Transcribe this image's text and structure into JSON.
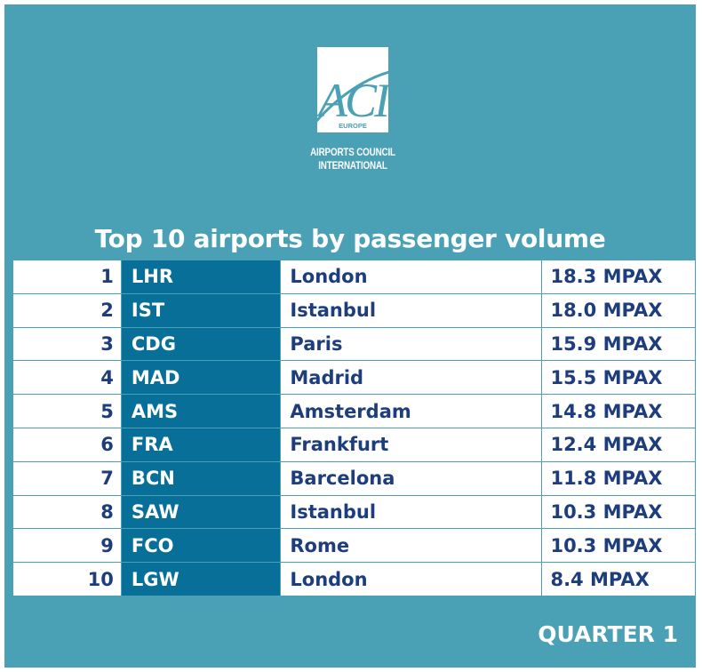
{
  "logo": {
    "mark": "ACI",
    "region": "EUROPE",
    "org_line1": "AIRPORTS COUNCIL",
    "org_line2": "INTERNATIONAL"
  },
  "title": "Top 10 airports by passenger volume",
  "rows": [
    {
      "rank": "1",
      "code": "LHR",
      "city": "London",
      "volume": "18.3 MPAX"
    },
    {
      "rank": "2",
      "code": "IST",
      "city": "Istanbul",
      "volume": "18.0 MPAX"
    },
    {
      "rank": "3",
      "code": "CDG",
      "city": "Paris",
      "volume": "15.9 MPAX"
    },
    {
      "rank": "4",
      "code": "MAD",
      "city": "Madrid",
      "volume": "15.5 MPAX"
    },
    {
      "rank": "5",
      "code": "AMS",
      "city": "Amsterdam",
      "volume": "14.8 MPAX"
    },
    {
      "rank": "6",
      "code": "FRA",
      "city": "Frankfurt",
      "volume": "12.4 MPAX"
    },
    {
      "rank": "7",
      "code": "BCN",
      "city": "Barcelona",
      "volume": "11.8 MPAX"
    },
    {
      "rank": "8",
      "code": "SAW",
      "city": "Istanbul",
      "volume": "10.3 MPAX"
    },
    {
      "rank": "9",
      "code": "FCO",
      "city": "Rome",
      "volume": "10.3 MPAX"
    },
    {
      "rank": "10",
      "code": "LGW",
      "city": "London",
      "volume": "8.4 MPAX"
    }
  ],
  "footer": "QUARTER 1",
  "colors": {
    "background": "#4aa0b5",
    "code_column": "#086f98",
    "text_dark": "#1d3d7c",
    "white": "#ffffff"
  }
}
